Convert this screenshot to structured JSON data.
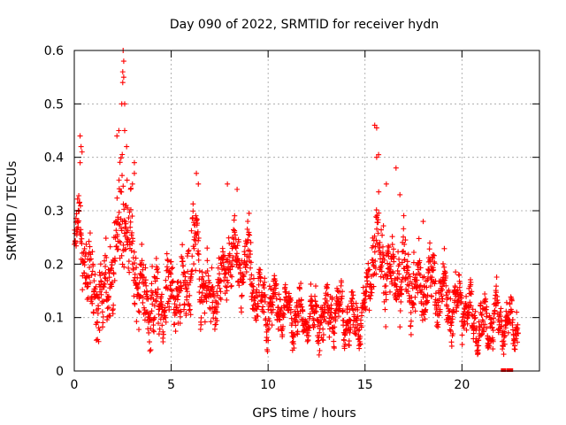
{
  "chart_data": {
    "type": "scatter",
    "title": "Day 090 of 2022, SRMTID for receiver hydn",
    "xlabel": "GPS time / hours",
    "ylabel": "SRMTID / TECUs",
    "xlim": [
      0,
      24
    ],
    "ylim": [
      0,
      0.6
    ],
    "xticks": [
      0,
      5,
      10,
      15,
      20
    ],
    "yticks": [
      0,
      0.1,
      0.2,
      0.3,
      0.4,
      0.5,
      0.6
    ],
    "xtick_labels": [
      "0",
      "5",
      "10",
      "15",
      "20"
    ],
    "ytick_labels": [
      "0",
      "0.1",
      "0.2",
      "0.3",
      "0.4",
      "0.5",
      "0.6"
    ],
    "grid": true,
    "legend": "none",
    "marker": "+",
    "color": "#ff0000",
    "trend": {
      "x": [
        0,
        0.1,
        0.3,
        0.5,
        0.8,
        1.0,
        1.2,
        1.5,
        1.8,
        2.0,
        2.2,
        2.4,
        2.5,
        2.6,
        2.8,
        3.0,
        3.2,
        3.5,
        4.0,
        4.5,
        5.0,
        5.5,
        6.0,
        6.3,
        6.5,
        7.0,
        7.5,
        8.0,
        8.5,
        9.0,
        9.5,
        10.0,
        10.5,
        11.0,
        11.5,
        12.0,
        12.5,
        13.0,
        13.5,
        14.0,
        14.5,
        15.0,
        15.3,
        15.6,
        16.0,
        16.5,
        17.0,
        17.5,
        18.0,
        18.5,
        19.0,
        19.5,
        20.0,
        20.5,
        21.0,
        21.5,
        22.0,
        22.5,
        22.9
      ],
      "y": [
        0.23,
        0.26,
        0.27,
        0.22,
        0.17,
        0.16,
        0.15,
        0.14,
        0.17,
        0.19,
        0.24,
        0.3,
        0.33,
        0.28,
        0.24,
        0.22,
        0.17,
        0.14,
        0.12,
        0.13,
        0.15,
        0.14,
        0.19,
        0.24,
        0.18,
        0.13,
        0.16,
        0.22,
        0.2,
        0.21,
        0.13,
        0.12,
        0.13,
        0.11,
        0.1,
        0.1,
        0.1,
        0.11,
        0.12,
        0.1,
        0.09,
        0.11,
        0.19,
        0.24,
        0.2,
        0.17,
        0.19,
        0.16,
        0.15,
        0.17,
        0.14,
        0.12,
        0.13,
        0.1,
        0.08,
        0.09,
        0.1,
        0.08,
        0.09
      ]
    },
    "spread": {
      "x": [
        0,
        1,
        2,
        2.5,
        3,
        4,
        5,
        6,
        7,
        8,
        9,
        10,
        11,
        12,
        13,
        14,
        15,
        15.6,
        16,
        17,
        18,
        19,
        20,
        21,
        22,
        22.9
      ],
      "y": [
        0.035,
        0.04,
        0.045,
        0.06,
        0.045,
        0.035,
        0.035,
        0.04,
        0.035,
        0.035,
        0.035,
        0.025,
        0.022,
        0.022,
        0.025,
        0.022,
        0.025,
        0.045,
        0.04,
        0.035,
        0.035,
        0.03,
        0.025,
        0.022,
        0.022,
        0.018
      ]
    },
    "density_per_hour": 90,
    "highlights": [
      {
        "x": 0.3,
        "y": 0.44
      },
      {
        "x": 0.35,
        "y": 0.42
      },
      {
        "x": 0.4,
        "y": 0.41
      },
      {
        "x": 0.3,
        "y": 0.39
      },
      {
        "x": 2.2,
        "y": 0.44
      },
      {
        "x": 2.3,
        "y": 0.45
      },
      {
        "x": 2.45,
        "y": 0.5
      },
      {
        "x": 2.5,
        "y": 0.54
      },
      {
        "x": 2.5,
        "y": 0.56
      },
      {
        "x": 2.52,
        "y": 0.6
      },
      {
        "x": 2.55,
        "y": 0.55
      },
      {
        "x": 2.55,
        "y": 0.58
      },
      {
        "x": 2.6,
        "y": 0.5
      },
      {
        "x": 2.6,
        "y": 0.45
      },
      {
        "x": 2.7,
        "y": 0.42
      },
      {
        "x": 3.1,
        "y": 0.39
      },
      {
        "x": 3.1,
        "y": 0.37
      },
      {
        "x": 3.0,
        "y": 0.35
      },
      {
        "x": 6.3,
        "y": 0.37
      },
      {
        "x": 6.4,
        "y": 0.35
      },
      {
        "x": 7.9,
        "y": 0.35
      },
      {
        "x": 8.4,
        "y": 0.34
      },
      {
        "x": 15.5,
        "y": 0.46
      },
      {
        "x": 15.6,
        "y": 0.455
      },
      {
        "x": 15.6,
        "y": 0.4
      },
      {
        "x": 15.7,
        "y": 0.405
      },
      {
        "x": 16.6,
        "y": 0.38
      },
      {
        "x": 16.1,
        "y": 0.35
      },
      {
        "x": 16.8,
        "y": 0.33
      },
      {
        "x": 18.0,
        "y": 0.28
      }
    ],
    "zero_points": [
      {
        "x": 22.1,
        "y": 0
      },
      {
        "x": 22.2,
        "y": 0
      },
      {
        "x": 22.4,
        "y": 0
      },
      {
        "x": 22.45,
        "y": 0
      },
      {
        "x": 22.5,
        "y": 0
      },
      {
        "x": 22.55,
        "y": 0
      }
    ]
  }
}
